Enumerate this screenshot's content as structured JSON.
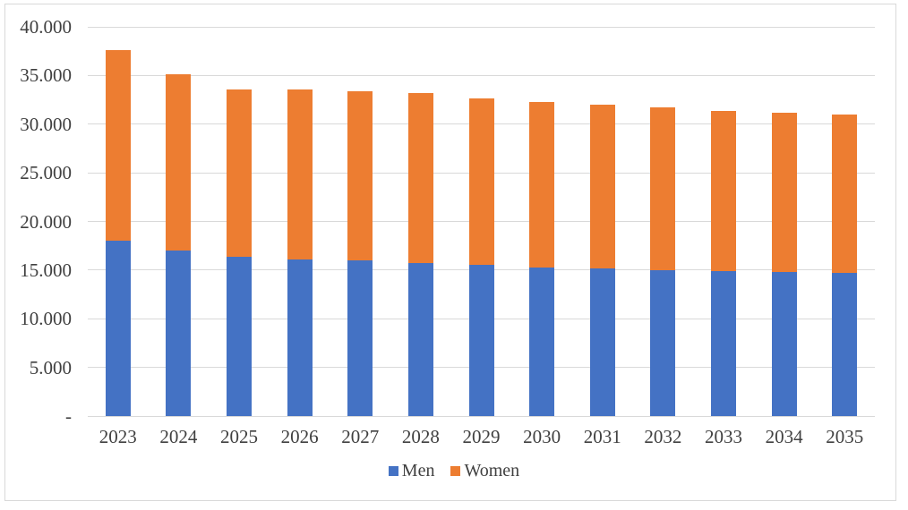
{
  "figure": {
    "background": "#ffffff",
    "border_color": "#d9d9d9",
    "text_color": "#404040"
  },
  "chart_data": {
    "type": "bar",
    "stacked": true,
    "categories": [
      "2023",
      "2024",
      "2025",
      "2026",
      "2027",
      "2028",
      "2029",
      "2030",
      "2031",
      "2032",
      "2033",
      "2034",
      "2035"
    ],
    "series": [
      {
        "name": "Men",
        "color": "#4472C4",
        "values": [
          18000,
          17000,
          16400,
          16100,
          16000,
          15700,
          15500,
          15300,
          15200,
          15000,
          14900,
          14800,
          14700
        ]
      },
      {
        "name": "Women",
        "color": "#ED7D31",
        "values": [
          19600,
          18100,
          17200,
          17500,
          17400,
          17500,
          17100,
          17000,
          16800,
          16700,
          16500,
          16400,
          16300
        ]
      }
    ],
    "ylim": [
      0,
      40000
    ],
    "ytick_step": 5000,
    "ytick_labels": [
      "-",
      "5.000",
      "10.000",
      "15.000",
      "20.000",
      "25.000",
      "30.000",
      "35.000",
      "40.000"
    ],
    "grid": true,
    "gridline_color": "#d9d9d9",
    "legend_position": "bottom"
  }
}
